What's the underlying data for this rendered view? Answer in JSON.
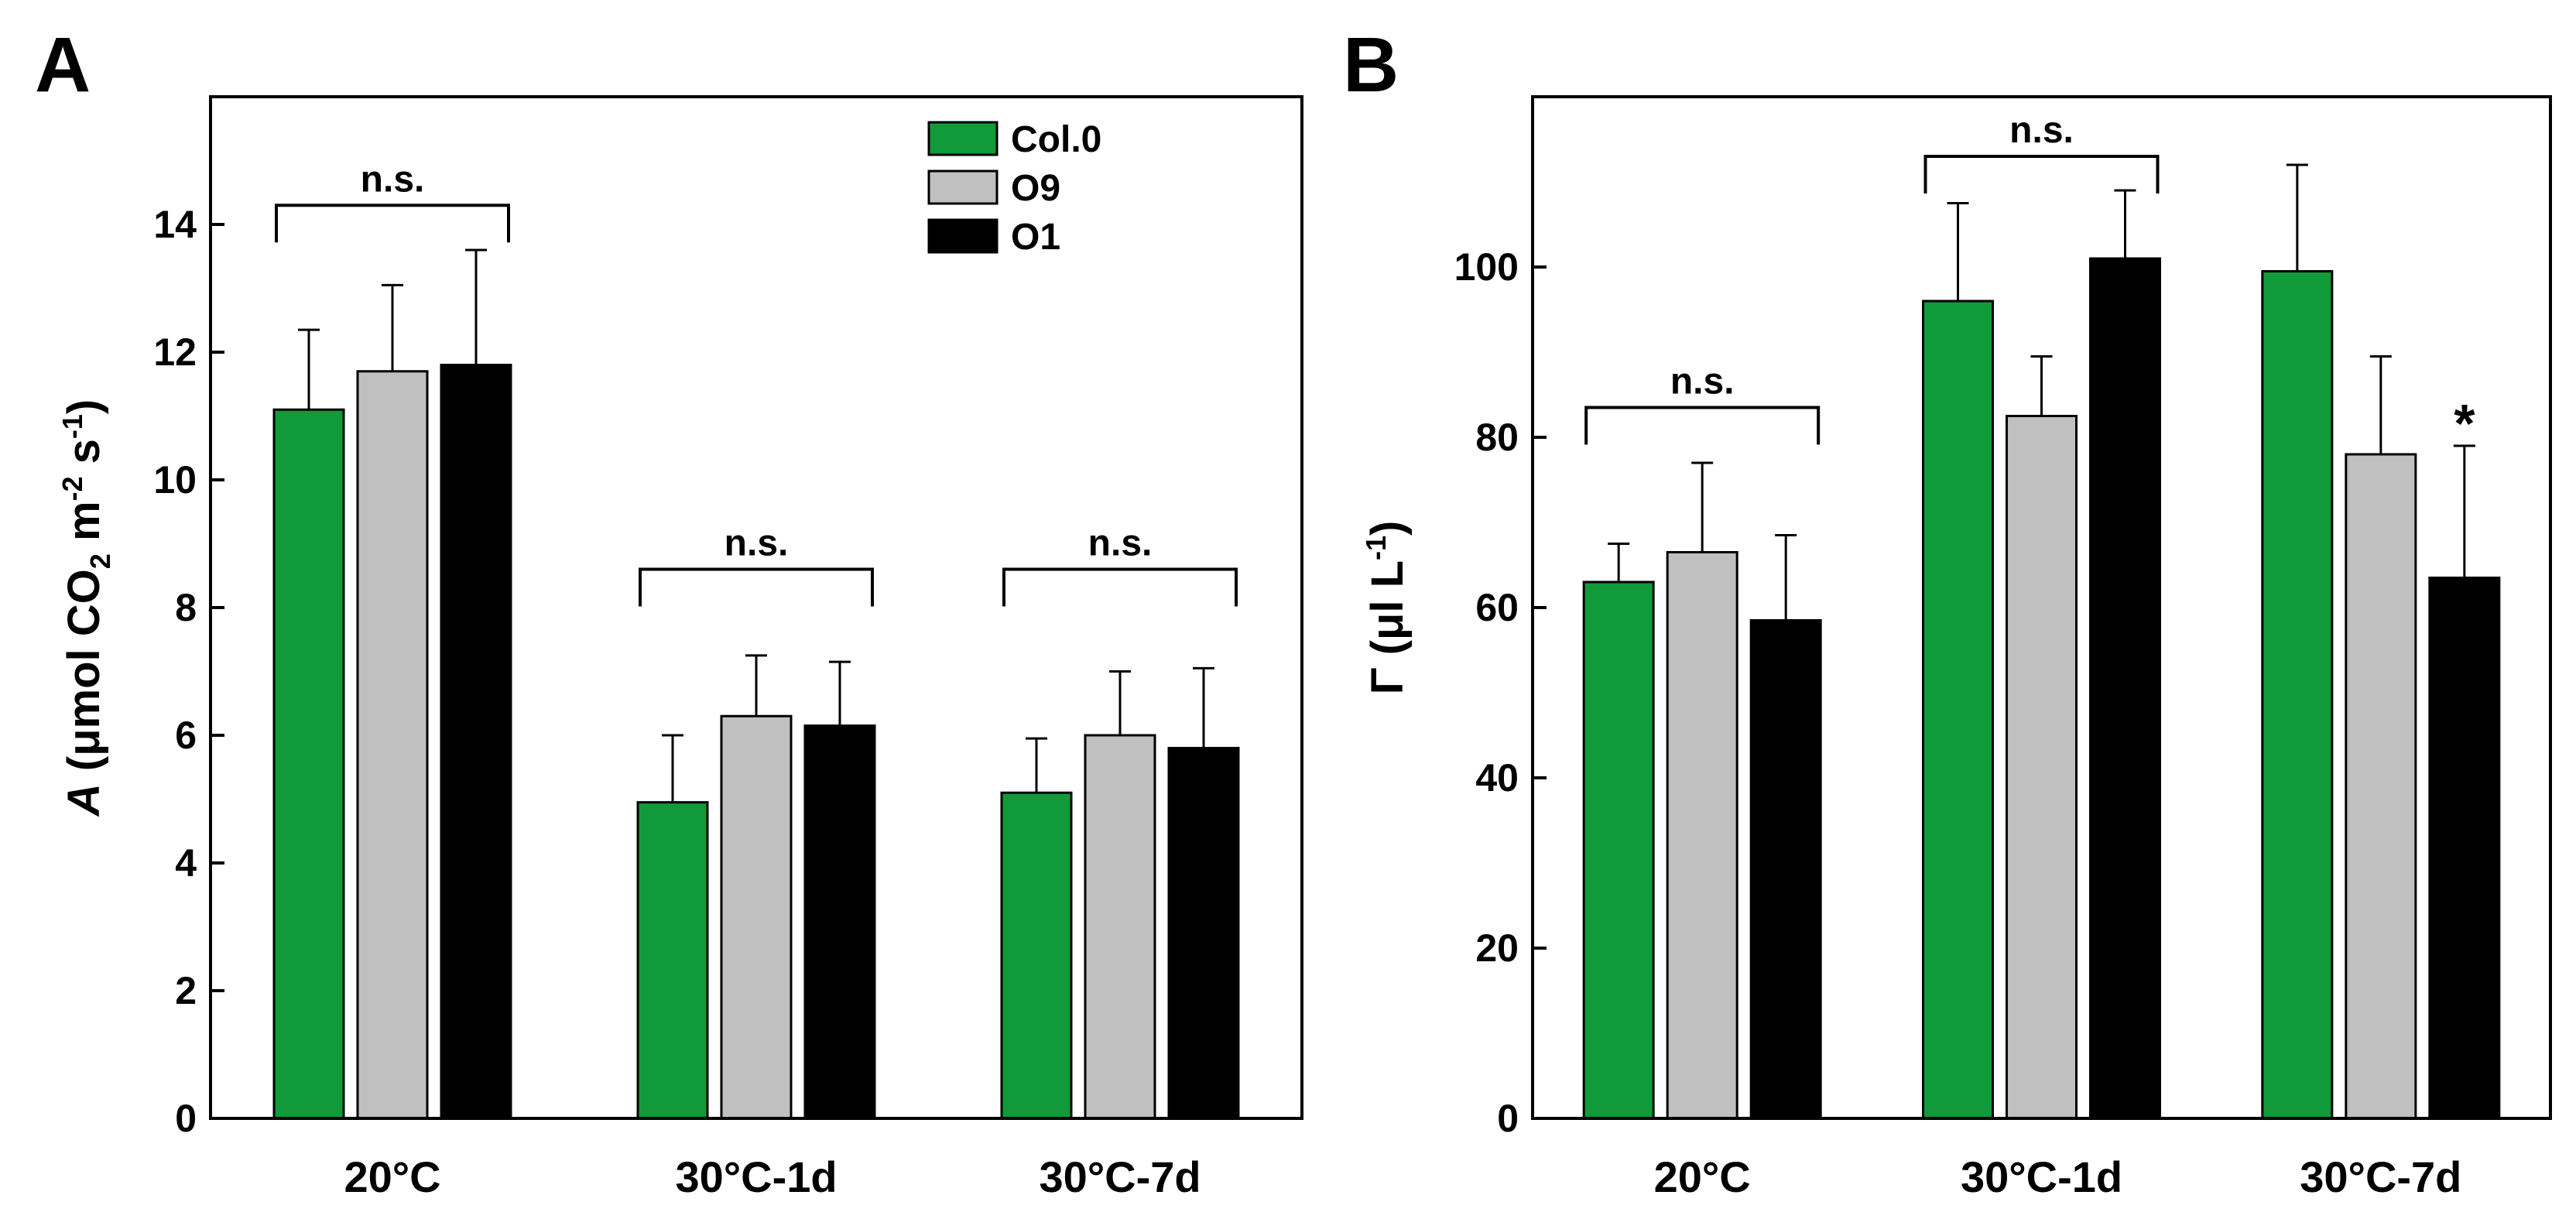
{
  "colors": {
    "Col.0": "#119a3a",
    "O9": "#c0c0c0",
    "O1": "#000000",
    "frame": "#000000"
  },
  "chart_data": [
    {
      "type": "bar",
      "panel": "A",
      "title": "",
      "xlabel": "",
      "ylabel_parts": {
        "italic": "A",
        "text": " (μmol CO",
        "sub": "2",
        "mid": " m",
        "sup1": "-2",
        "mid2": " s",
        "sup2": "-1",
        "end": ")"
      },
      "ylim": [
        0,
        16
      ],
      "yticks": [
        0,
        2,
        4,
        6,
        8,
        10,
        12,
        14
      ],
      "categories": [
        "20°C",
        "30°C-1d",
        "30°C-7d"
      ],
      "series": [
        {
          "name": "Col.0",
          "values": [
            11.1,
            4.95,
            5.1
          ],
          "errors": [
            1.25,
            1.05,
            0.85
          ]
        },
        {
          "name": "O9",
          "values": [
            11.7,
            6.3,
            6.0
          ],
          "errors": [
            1.35,
            0.95,
            1.0
          ]
        },
        {
          "name": "O1",
          "values": [
            11.8,
            6.15,
            5.8
          ],
          "errors": [
            1.8,
            1.0,
            1.25
          ]
        }
      ],
      "legend": {
        "position": "top-right",
        "labels": [
          "Col.0",
          "O9",
          "O1"
        ]
      },
      "annotations": [
        {
          "category_index": 0,
          "text": "n.s.",
          "level": 14.3
        },
        {
          "category_index": 1,
          "text": "n.s.",
          "level": 8.6
        },
        {
          "category_index": 2,
          "text": "n.s.",
          "level": 8.6
        }
      ]
    },
    {
      "type": "bar",
      "panel": "B",
      "title": "",
      "xlabel": "",
      "ylabel_parts": {
        "text": "Γ (μl L",
        "sup": "-1",
        "end": ")"
      },
      "ylim": [
        0,
        120
      ],
      "yticks": [
        0,
        20,
        40,
        60,
        80,
        100
      ],
      "categories": [
        "20°C",
        "30°C-1d",
        "30°C-7d"
      ],
      "series": [
        {
          "name": "Col.0",
          "values": [
            63,
            96,
            99.5
          ],
          "errors": [
            4.5,
            11.5,
            12.5
          ]
        },
        {
          "name": "O9",
          "values": [
            66.5,
            82.5,
            78
          ],
          "errors": [
            10.5,
            7,
            11.5
          ]
        },
        {
          "name": "O1",
          "values": [
            58.5,
            101,
            63.5
          ],
          "errors": [
            10,
            8,
            15.5
          ]
        }
      ],
      "annotations": [
        {
          "category_index": 0,
          "text": "n.s.",
          "level": 83.5
        },
        {
          "category_index": 1,
          "text": "n.s.",
          "level": 113
        }
      ],
      "significance": [
        {
          "category_index": 2,
          "series_index": 2,
          "text": "*"
        }
      ]
    }
  ]
}
